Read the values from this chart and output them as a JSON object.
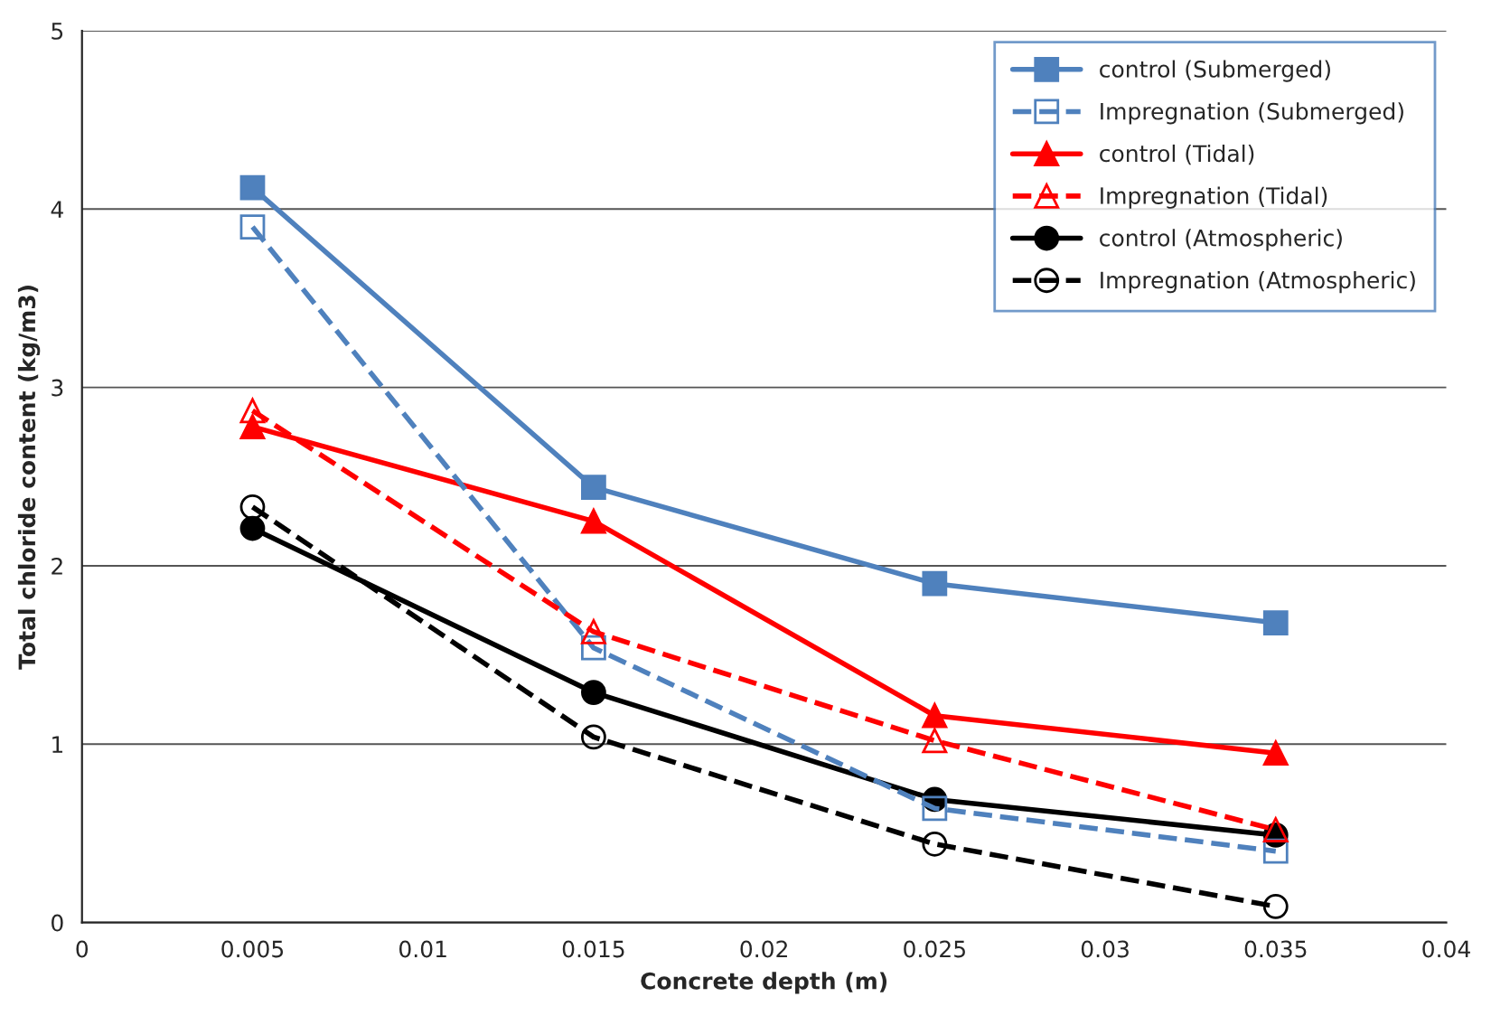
{
  "chart_data": {
    "type": "line",
    "xlabel": "Concrete depth (m)",
    "ylabel": "Total chloride content (kg/m3)",
    "x": [
      0.005,
      0.015,
      0.025,
      0.035
    ],
    "xlim": [
      0,
      0.04
    ],
    "xticks": [
      0,
      0.005,
      0.01,
      0.015,
      0.02,
      0.025,
      0.03,
      0.035,
      0.04
    ],
    "ylim": [
      0,
      5
    ],
    "yticks": [
      0,
      1,
      2,
      3,
      4,
      5
    ],
    "grid": "y",
    "legend": "top right",
    "series": [
      {
        "name": "control (Submerged)",
        "color": "#4f81bd",
        "marker": "square",
        "line_style": "solid",
        "values": [
          4.12,
          2.44,
          1.9,
          1.68
        ]
      },
      {
        "name": "Impregnation (Submerged)",
        "color": "#4f81bd",
        "marker": "square",
        "line_style": "dashed",
        "values": [
          3.9,
          1.54,
          0.64,
          0.4
        ]
      },
      {
        "name": "control (Tidal)",
        "color": "#ff0000",
        "marker": "triangle",
        "line_style": "solid",
        "values": [
          2.78,
          2.25,
          1.16,
          0.95
        ]
      },
      {
        "name": "Impregnation (Tidal)",
        "color": "#ff0000",
        "marker": "triangle",
        "line_style": "dashed",
        "values": [
          2.87,
          1.63,
          1.02,
          0.52
        ]
      },
      {
        "name": "control (Atmospheric)",
        "color": "#000000",
        "marker": "circle",
        "line_style": "solid",
        "values": [
          2.21,
          1.29,
          0.69,
          0.49
        ]
      },
      {
        "name": "Impregnation (Atmospheric)",
        "color": "#000000",
        "marker": "circle",
        "line_style": "dashed",
        "values": [
          2.33,
          1.04,
          0.44,
          0.09
        ]
      }
    ]
  }
}
